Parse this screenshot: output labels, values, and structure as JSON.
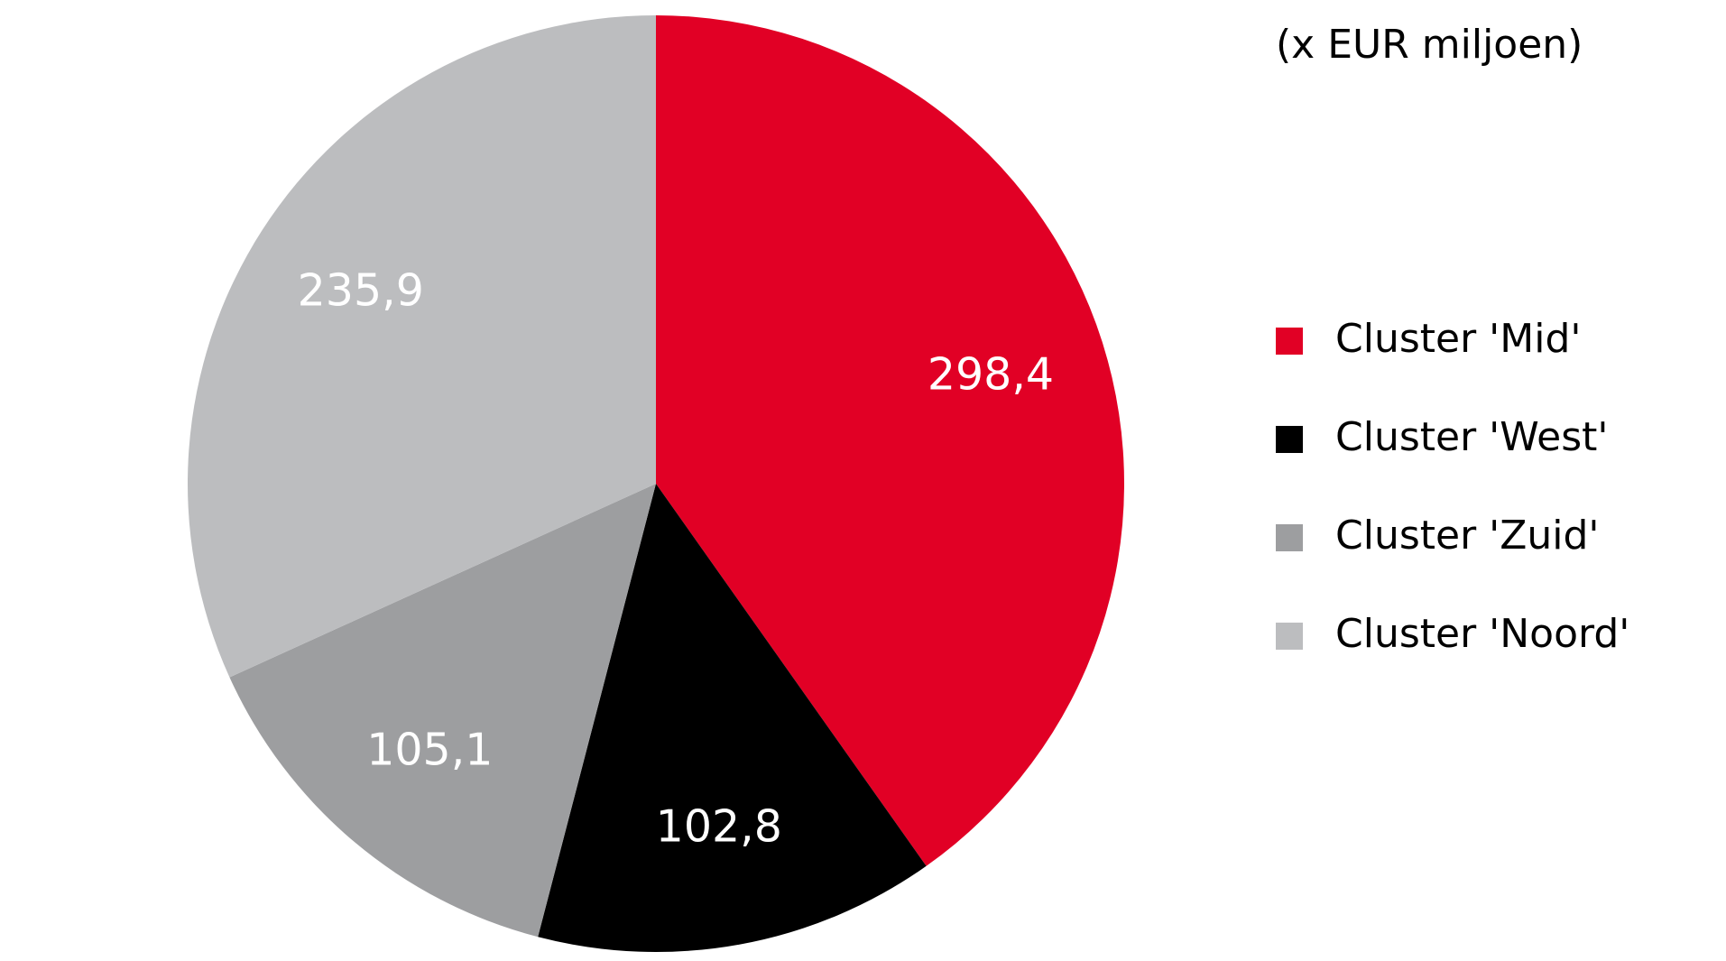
{
  "chart_data": {
    "type": "pie",
    "subtitle": "(x EUR miljoen)",
    "categories": [
      "Cluster 'Mid'",
      "Cluster 'West'",
      "Cluster 'Zuid'",
      "Cluster 'Noord'"
    ],
    "values": [
      298.4,
      102.8,
      105.1,
      235.9
    ],
    "value_labels": [
      "298,4",
      "102,8",
      "105,1",
      "235,9"
    ],
    "colors": [
      "#e10025",
      "#000000",
      "#9d9ea0",
      "#bcbdbf"
    ]
  }
}
